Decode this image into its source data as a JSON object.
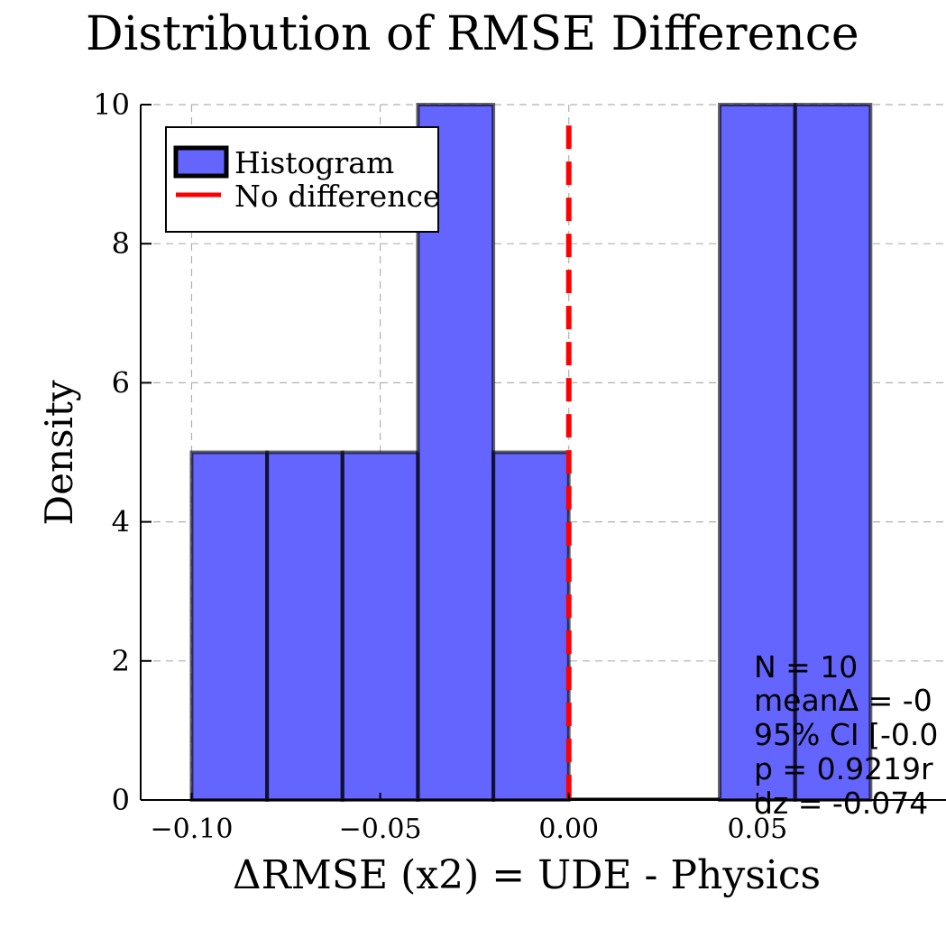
{
  "chart_data": {
    "type": "bar",
    "title": "Distribution of RMSE Difference",
    "xlabel": "ΔRMSE (x2) = UDE - Physics",
    "ylabel": "Density",
    "xlim": [
      -0.1135,
      0.1
    ],
    "ylim": [
      0,
      10
    ],
    "x_ticks": [
      -0.1,
      -0.05,
      0.0,
      0.05
    ],
    "x_tick_labels": [
      "−0.10",
      "−0.05",
      "0.00",
      "0.05"
    ],
    "y_ticks": [
      0,
      2,
      4,
      6,
      8,
      10
    ],
    "y_tick_labels": [
      "0",
      "2",
      "4",
      "6",
      "8",
      "10"
    ],
    "bins": [
      {
        "x0": -0.1,
        "x1": -0.08,
        "density": 5
      },
      {
        "x0": -0.08,
        "x1": -0.06,
        "density": 5
      },
      {
        "x0": -0.06,
        "x1": -0.04,
        "density": 5
      },
      {
        "x0": -0.04,
        "x1": -0.02,
        "density": 10
      },
      {
        "x0": -0.02,
        "x1": 0.0,
        "density": 5
      },
      {
        "x0": 0.0,
        "x1": 0.02,
        "density": 0
      },
      {
        "x0": 0.02,
        "x1": 0.04,
        "density": 0
      },
      {
        "x0": 0.04,
        "x1": 0.06,
        "density": 10
      },
      {
        "x0": 0.06,
        "x1": 0.08,
        "density": 10
      }
    ],
    "reference_line": {
      "x": 0.0,
      "label": "No difference",
      "color": "#ff0000"
    },
    "legend": {
      "position": "top-left",
      "entries": [
        {
          "label": "Histogram",
          "color": "#6464ff"
        },
        {
          "label": "No difference",
          "color": "#ff0000"
        }
      ]
    },
    "annotation_lines": [
      "N = 10",
      "meanΔ = -0",
      "95% CI [-0.0",
      "p = 0.9219r",
      "dz = -0.074"
    ],
    "grid": true,
    "colors": {
      "bar_fill": "#6464ff",
      "bar_edge": "#000000",
      "reference": "#ff0000",
      "grid": "#b0b0b0"
    }
  }
}
